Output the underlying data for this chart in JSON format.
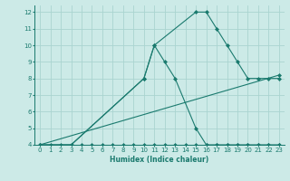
{
  "xlabel": "Humidex (Indice chaleur)",
  "background_color": "#cceae7",
  "grid_color": "#aad4d0",
  "line_color": "#1a7a6e",
  "xlim": [
    -0.5,
    23.5
  ],
  "ylim": [
    4,
    12.4
  ],
  "xticks": [
    0,
    1,
    2,
    3,
    4,
    5,
    6,
    7,
    8,
    9,
    10,
    11,
    12,
    13,
    14,
    15,
    16,
    17,
    18,
    19,
    20,
    21,
    22,
    23
  ],
  "yticks": [
    4,
    5,
    6,
    7,
    8,
    9,
    10,
    11,
    12
  ],
  "series": [
    {
      "x": [
        0,
        1,
        2,
        3,
        4,
        5,
        6,
        7,
        8,
        9,
        10,
        11,
        12,
        13,
        14,
        15,
        16,
        17,
        18,
        19,
        20,
        21,
        22,
        23
      ],
      "y": [
        4,
        4,
        4,
        4,
        4,
        4,
        4,
        4,
        4,
        4,
        4,
        4,
        4,
        4,
        4,
        4,
        4,
        4,
        4,
        4,
        4,
        4,
        4,
        4
      ]
    },
    {
      "x": [
        0,
        3,
        10,
        11,
        12,
        13,
        15,
        16,
        17,
        18,
        19,
        20,
        21,
        22,
        23
      ],
      "y": [
        4,
        4,
        8,
        10,
        9,
        8,
        5,
        4,
        4,
        4,
        4,
        4,
        4,
        4,
        4
      ]
    },
    {
      "x": [
        0,
        3,
        10,
        11,
        15,
        16,
        17,
        18,
        19,
        20,
        21,
        22,
        23
      ],
      "y": [
        4,
        4,
        8,
        10,
        12,
        12,
        11,
        10,
        9,
        8,
        8,
        8,
        8
      ]
    },
    {
      "x": [
        0,
        23
      ],
      "y": [
        4,
        8.2
      ]
    }
  ]
}
